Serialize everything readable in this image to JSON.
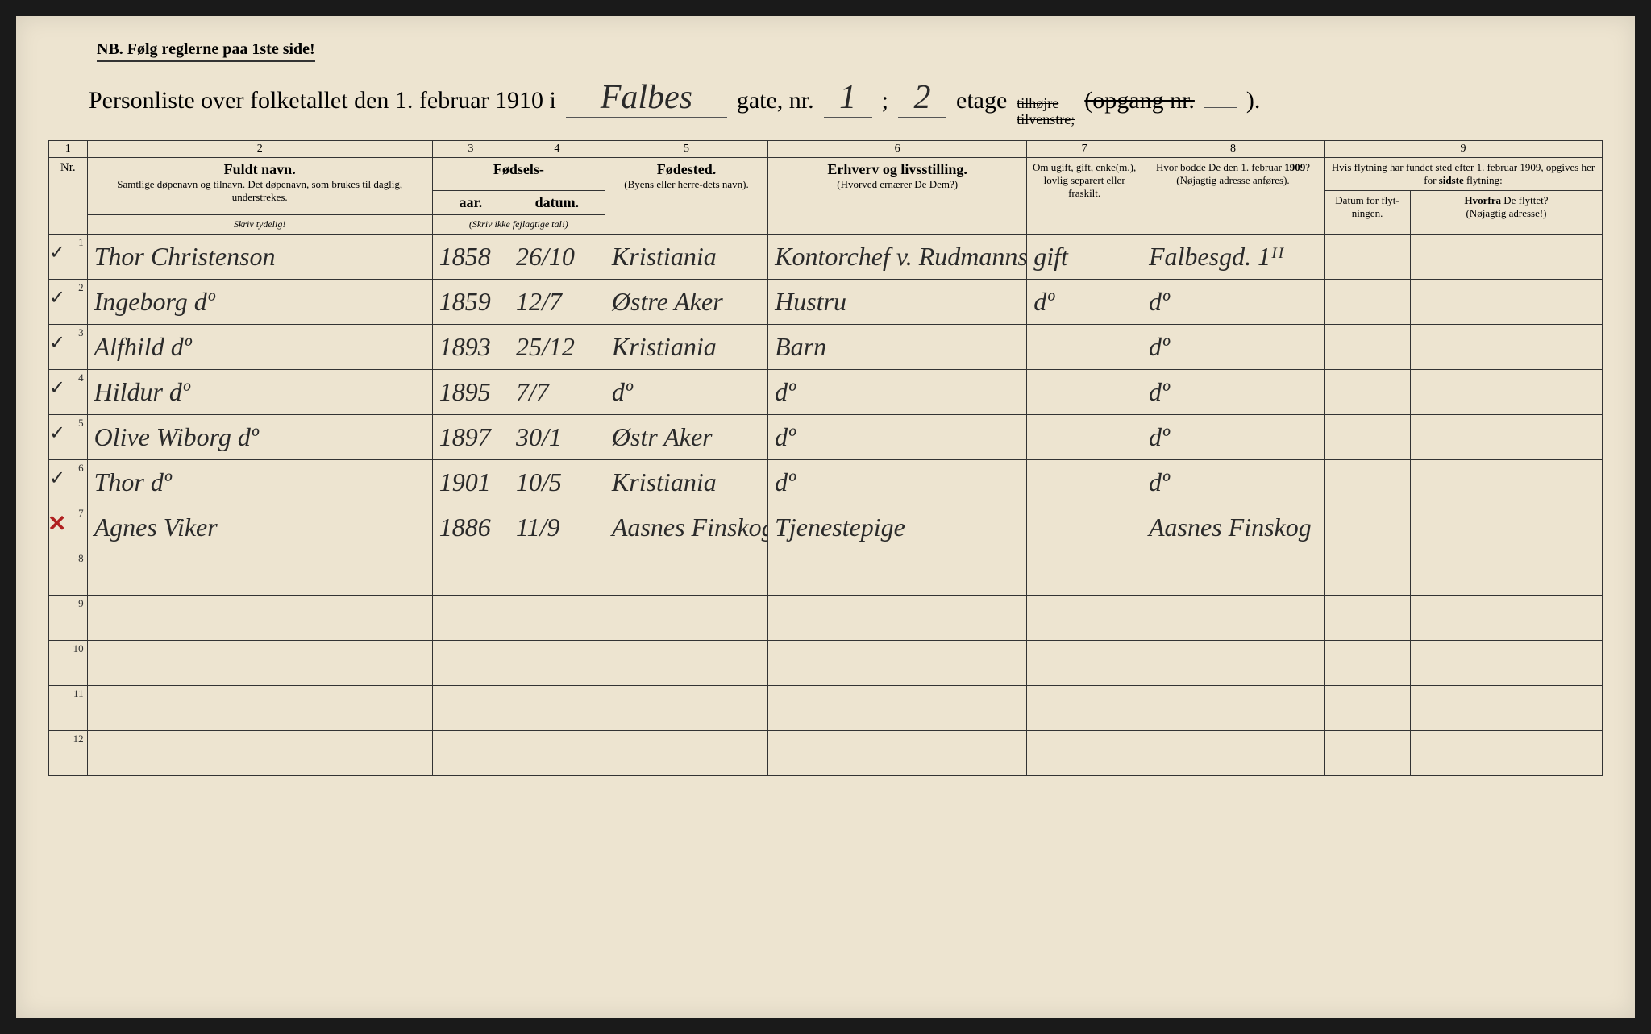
{
  "nb_text": "NB.  Følg reglerne paa 1ste side!",
  "title": {
    "prefix": "Personliste over folketallet den 1. februar 1910 i",
    "street": "Falbes",
    "gate_label": "gate, nr.",
    "gate_nr": "1",
    "semicolon": ";",
    "etage_nr": "2",
    "etage_label": "etage",
    "struck1": "tilhøjre",
    "struck2": "tilvenstre;",
    "opgang": "(opgang nr.",
    "opgang_nr": "",
    "closing": ")."
  },
  "col_numbers": [
    "1",
    "2",
    "3",
    "4",
    "5",
    "6",
    "7",
    "8",
    "9"
  ],
  "headers": {
    "nr": "Nr.",
    "name_main": "Fuldt navn.",
    "name_sub": "Samtlige døpenavn og tilnavn. Det døpenavn, som brukes til daglig, understrekes.",
    "fodsels": "Fødsels-",
    "aar": "aar.",
    "datum": "datum.",
    "year_instr": "(Skriv ikke fejlagtige tal!)",
    "name_instr": "Skriv tydelig!",
    "birthplace_main": "Fødested.",
    "birthplace_sub": "(Byens eller herre-dets navn).",
    "occupation_main": "Erhverv og livsstilling.",
    "occupation_sub": "(Hvorved ernærer De Dem?)",
    "marital": "Om ugift, gift, enke(m.), lovlig separert eller fraskilt.",
    "address1909_main": "Hvor bodde De den 1. februar 1909?",
    "address1909_sub": "(Nøjagtig adresse anføres).",
    "move_main": "Hvis flytning har fundet sted efter 1. februar 1909, opgives her for sidste flytning:",
    "move_date": "Datum for flyt-ningen.",
    "move_from_main": "Hvorfra De flyttet?",
    "move_from_sub": "(Nøjagtig adresse!)"
  },
  "rows": [
    {
      "nr": "1",
      "mark": "check",
      "name": "Thor Christenson",
      "year": "1858",
      "date": "26/10",
      "birthplace": "Kristiania",
      "occupation": "Kontorchef v. Rudmanns Rf.",
      "marital": "gift",
      "address": "Falbesgd. 1ᴵᴵ",
      "movedate": "",
      "movefrom": ""
    },
    {
      "nr": "2",
      "mark": "check",
      "name": "Ingeborg      dº",
      "year": "1859",
      "date": "12/7",
      "birthplace": "Østre Aker",
      "occupation": "Hustru",
      "marital": "dº",
      "address": "dº",
      "movedate": "",
      "movefrom": ""
    },
    {
      "nr": "3",
      "mark": "check",
      "name": "Alfhild      dº",
      "year": "1893",
      "date": "25/12",
      "birthplace": "Kristiania",
      "occupation": "Barn",
      "marital": "",
      "address": "dº",
      "movedate": "",
      "movefrom": ""
    },
    {
      "nr": "4",
      "mark": "check",
      "name": "Hildur      dº",
      "year": "1895",
      "date": "7/7",
      "birthplace": "dº",
      "occupation": "dº",
      "marital": "",
      "address": "dº",
      "movedate": "",
      "movefrom": ""
    },
    {
      "nr": "5",
      "mark": "check",
      "name": "Olive Wiborg dº",
      "year": "1897",
      "date": "30/1",
      "birthplace": "Østr Aker",
      "occupation": "dº",
      "marital": "",
      "address": "dº",
      "movedate": "",
      "movefrom": ""
    },
    {
      "nr": "6",
      "mark": "check",
      "name": "Thor         dº",
      "year": "1901",
      "date": "10/5",
      "birthplace": "Kristiania",
      "occupation": "dº",
      "marital": "",
      "address": "dº",
      "movedate": "",
      "movefrom": ""
    },
    {
      "nr": "7",
      "mark": "x",
      "name": "Agnes Viker",
      "year": "1886",
      "date": "11/9",
      "birthplace": "Aasnes Finskog",
      "occupation": "Tjenestepige",
      "marital": "",
      "address": "Aasnes Finskog",
      "movedate": "",
      "movefrom": ""
    }
  ],
  "empty_rows": [
    "8",
    "9",
    "10",
    "11",
    "12"
  ]
}
